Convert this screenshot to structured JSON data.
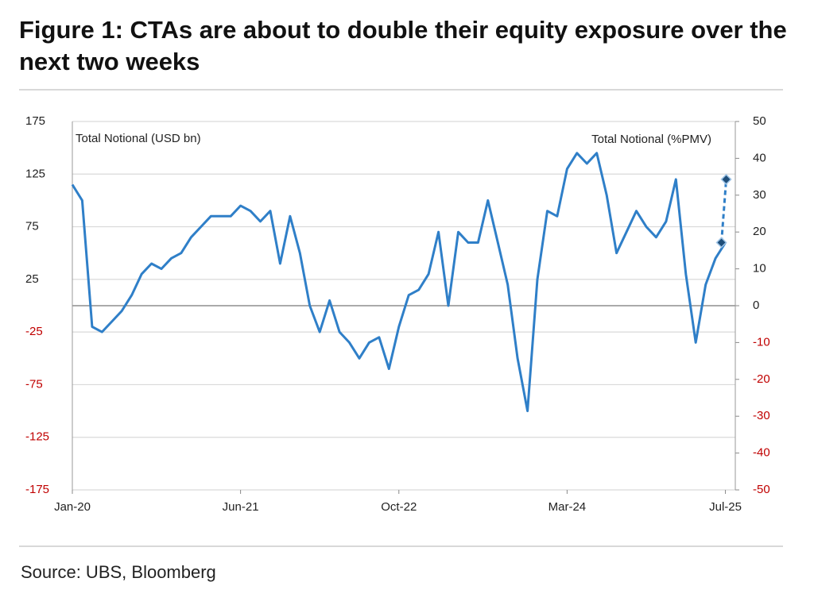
{
  "chart_data": {
    "type": "line",
    "title": "Figure 1: CTAs are about to double their equity exposure over the next two weeks",
    "ylabel": "Total Notional (USD bn)",
    "y2label": "Total Notional (%PMV)",
    "source": "Source: UBS, Bloomberg",
    "x": [
      "2020-01",
      "2020-02",
      "2020-03",
      "2020-04",
      "2020-05",
      "2020-06",
      "2020-07",
      "2020-08",
      "2020-09",
      "2020-10",
      "2020-11",
      "2020-12",
      "2021-01",
      "2021-02",
      "2021-03",
      "2021-04",
      "2021-05",
      "2021-06",
      "2021-07",
      "2021-08",
      "2021-09",
      "2021-10",
      "2021-11",
      "2021-12",
      "2022-01",
      "2022-02",
      "2022-03",
      "2022-04",
      "2022-05",
      "2022-06",
      "2022-07",
      "2022-08",
      "2022-09",
      "2022-10",
      "2022-11",
      "2022-12",
      "2023-01",
      "2023-02",
      "2023-03",
      "2023-04",
      "2023-05",
      "2023-06",
      "2023-07",
      "2023-08",
      "2023-09",
      "2023-10",
      "2023-11",
      "2023-12",
      "2024-01",
      "2024-02",
      "2024-03",
      "2024-04",
      "2024-05",
      "2024-06",
      "2024-07",
      "2024-08",
      "2024-09",
      "2024-10",
      "2024-11",
      "2024-12",
      "2025-01",
      "2025-02",
      "2025-03",
      "2025-04",
      "2025-05",
      "2025-06",
      "2025-07"
    ],
    "series": [
      {
        "color": "#2f7fc8",
        "values": [
          115,
          100,
          -20,
          -25,
          -15,
          -5,
          10,
          30,
          40,
          35,
          45,
          50,
          65,
          75,
          85,
          85,
          85,
          95,
          90,
          80,
          90,
          40,
          85,
          50,
          0,
          -25,
          5,
          -25,
          -35,
          -50,
          -35,
          -30,
          -60,
          -20,
          10,
          15,
          30,
          70,
          0,
          70,
          60,
          60,
          100,
          60,
          20,
          -50,
          -100,
          25,
          90,
          85,
          130,
          145,
          135,
          145,
          105,
          50,
          70,
          90,
          75,
          65,
          80,
          120,
          30,
          -35,
          20,
          45,
          60
        ]
      }
    ],
    "projection": {
      "values": [
        60,
        120
      ],
      "color": "#2f7fc8",
      "marker_color": "#1f4e79",
      "style": "dashed",
      "marker": "diamond"
    },
    "xlim": [
      "2020-01",
      "2025-08"
    ],
    "xticks": [
      {
        "value": "2020-01",
        "label": "Jan-20"
      },
      {
        "value": "2021-06",
        "label": "Jun-21"
      },
      {
        "value": "2022-10",
        "label": "Oct-22"
      },
      {
        "value": "2024-03",
        "label": "Mar-24"
      },
      {
        "value": "2025-07",
        "label": "Jul-25"
      }
    ],
    "ylim": [
      -175,
      175
    ],
    "yticks": [
      175,
      125,
      75,
      25,
      -25,
      -75,
      -125,
      -175
    ],
    "y2lim": [
      -50,
      50
    ],
    "y2ticks": [
      50,
      40,
      30,
      20,
      10,
      0,
      -10,
      -20,
      -30,
      -40,
      -50
    ],
    "negative_tick_color": "#c00000",
    "grid": true
  }
}
